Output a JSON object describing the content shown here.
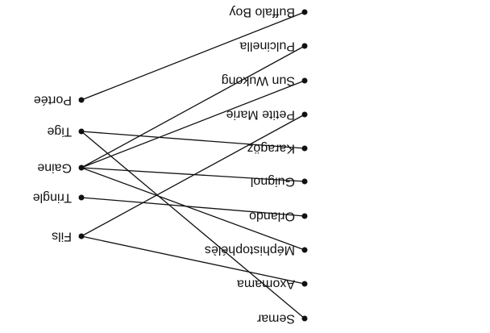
{
  "colors": {
    "ink": "#111111",
    "background": "#ffffff"
  },
  "orientation": "rotated-180",
  "left_nodes": [
    {
      "id": "portee",
      "label": "Portée"
    },
    {
      "id": "tige",
      "label": "Tige"
    },
    {
      "id": "gaine",
      "label": "Gaine"
    },
    {
      "id": "tringle",
      "label": "Tringle"
    },
    {
      "id": "fils",
      "label": "Fils"
    }
  ],
  "right_nodes": [
    {
      "id": "buffalo-boy",
      "label": "Buffalo Boy"
    },
    {
      "id": "pulcinella",
      "label": "Pulcinella"
    },
    {
      "id": "sun-wukong",
      "label": "Sun Wukong"
    },
    {
      "id": "petite-marie",
      "label": "Petite Marie"
    },
    {
      "id": "karagoz",
      "label": "Karagöz"
    },
    {
      "id": "guignol",
      "label": "Guignol"
    },
    {
      "id": "orlando",
      "label": "Orlando"
    },
    {
      "id": "mephistopheles",
      "label": "Méphistophélès"
    },
    {
      "id": "axomama",
      "label": "Axomama"
    },
    {
      "id": "semar",
      "label": "Semar"
    }
  ],
  "edges": [
    [
      "portee",
      "buffalo-boy"
    ],
    [
      "tige",
      "karagoz"
    ],
    [
      "tige",
      "semar"
    ],
    [
      "gaine",
      "pulcinella"
    ],
    [
      "gaine",
      "sun-wukong"
    ],
    [
      "gaine",
      "guignol"
    ],
    [
      "gaine",
      "mephistopheles"
    ],
    [
      "tringle",
      "orlando"
    ],
    [
      "fils",
      "petite-marie"
    ],
    [
      "fils",
      "axomama"
    ]
  ]
}
